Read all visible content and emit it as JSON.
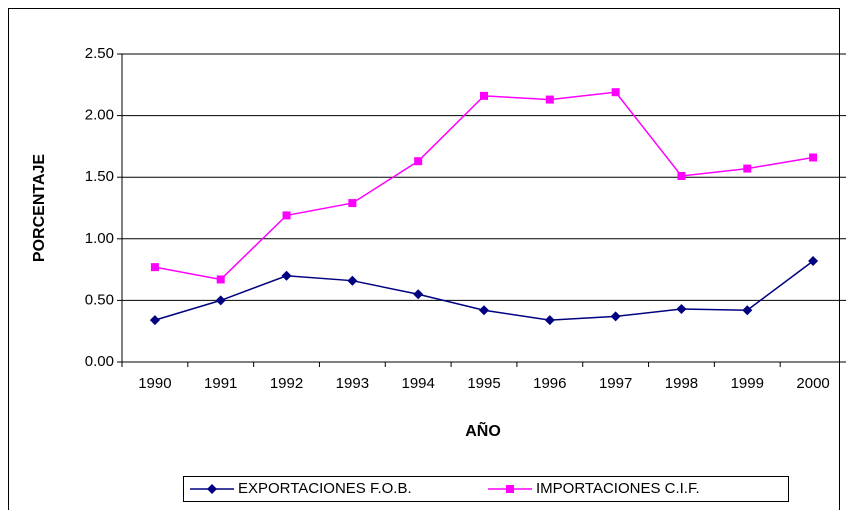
{
  "chart_data": {
    "type": "line",
    "categories": [
      "1990",
      "1991",
      "1992",
      "1993",
      "1994",
      "1995",
      "1996",
      "1997",
      "1998",
      "1999",
      "2000"
    ],
    "series": [
      {
        "name": "EXPORTACIONES F.O.B.",
        "color": "#000080",
        "marker": "diamond",
        "values": [
          0.34,
          0.5,
          0.7,
          0.66,
          0.55,
          0.42,
          0.34,
          0.37,
          0.43,
          0.42,
          0.82
        ]
      },
      {
        "name": "IMPORTACIONES C.I.F.",
        "color": "#ff00ff",
        "marker": "square",
        "values": [
          0.77,
          0.67,
          1.19,
          1.29,
          1.63,
          2.16,
          2.13,
          2.19,
          1.51,
          1.57,
          1.66
        ]
      }
    ],
    "xlabel": "AÑO",
    "ylabel": "PORCENTAJE",
    "ylim": [
      0,
      2.5
    ],
    "yticks": [
      {
        "value": 0,
        "label": "0.00"
      },
      {
        "value": 0.5,
        "label": "0.50"
      },
      {
        "value": 1,
        "label": "1.00"
      },
      {
        "value": 1.5,
        "label": "1.50"
      },
      {
        "value": 2,
        "label": "2.00"
      },
      {
        "value": 2.5,
        "label": "2.50"
      }
    ],
    "grid": true,
    "legend": "bottom"
  }
}
